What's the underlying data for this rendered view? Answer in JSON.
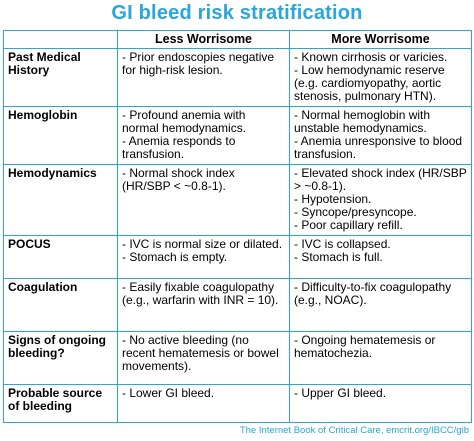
{
  "title": "GI bleed risk stratification",
  "columns": [
    "",
    "Less Worrisome",
    "More Worrisome"
  ],
  "rows": [
    {
      "label": "Past Medical History",
      "less": [
        "- Prior endoscopies negative for high-risk lesion."
      ],
      "more": [
        "- Known cirrhosis or varicies.",
        "- Low hemodynamic reserve (e.g. cardiomyopathy, aortic stenosis, pulmonary HTN)."
      ]
    },
    {
      "label": "Hemoglobin",
      "less": [
        "- Profound anemia with normal hemodynamics.",
        "- Anemia responds to transfusion."
      ],
      "more": [
        "- Normal hemoglobin with unstable hemodynamics.",
        "- Anemia unresponsive to blood transfusion."
      ]
    },
    {
      "label": "Hemodynamics",
      "less": [
        "- Normal shock index (HR/SBP < ~0.8-1)."
      ],
      "more": [
        "- Elevated shock index (HR/SBP > ~0.8-1).",
        "- Hypotension.",
        "- Syncope/presyncope.",
        "- Poor capillary refill."
      ]
    },
    {
      "label": "POCUS",
      "less": [
        "- IVC is normal size or dilated.",
        "- Stomach is empty."
      ],
      "more": [
        "- IVC is collapsed.",
        "- Stomach is full."
      ]
    },
    {
      "label": "Coagulation",
      "less": [
        "- Easily fixable coagulopathy (e.g., warfarin with INR = 10)."
      ],
      "more": [
        "- Difficulty-to-fix coagulopathy (e.g., NOAC)."
      ]
    },
    {
      "label": "Signs of ongoing bleeding?",
      "less": [
        "- No active bleeding (no recent hematemesis or bowel movements)."
      ],
      "more": [
        "- Ongoing hematemesis or hematochezia."
      ]
    },
    {
      "label": "Probable source of bleeding",
      "less": [
        "- Lower GI bleed."
      ],
      "more": [
        "- Upper GI bleed."
      ]
    }
  ],
  "footer": "The Internet Book of Critical Care, emcrit.org/IBCC/gib",
  "colors": {
    "accent": "#2aa6d8",
    "text": "#000000",
    "background": "#ffffff"
  }
}
